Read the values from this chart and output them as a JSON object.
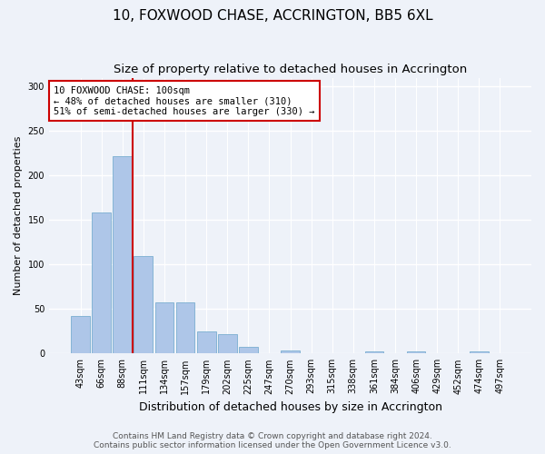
{
  "title": "10, FOXWOOD CHASE, ACCRINGTON, BB5 6XL",
  "subtitle": "Size of property relative to detached houses in Accrington",
  "xlabel": "Distribution of detached houses by size in Accrington",
  "ylabel": "Number of detached properties",
  "categories": [
    "43sqm",
    "66sqm",
    "88sqm",
    "111sqm",
    "134sqm",
    "157sqm",
    "179sqm",
    "202sqm",
    "225sqm",
    "247sqm",
    "270sqm",
    "293sqm",
    "315sqm",
    "338sqm",
    "361sqm",
    "384sqm",
    "406sqm",
    "429sqm",
    "452sqm",
    "474sqm",
    "497sqm"
  ],
  "values": [
    42,
    158,
    222,
    110,
    57,
    57,
    25,
    22,
    7,
    0,
    3,
    0,
    0,
    0,
    2,
    0,
    2,
    0,
    0,
    2,
    0
  ],
  "bar_color": "#aec6e8",
  "bar_edge_color": "#7aaed0",
  "background_color": "#eef2f9",
  "grid_color": "#ffffff",
  "annotation_box_text": "10 FOXWOOD CHASE: 100sqm\n← 48% of detached houses are smaller (310)\n51% of semi-detached houses are larger (330) →",
  "annotation_box_color": "#ffffff",
  "annotation_box_edge_color": "#cc0000",
  "vline_color": "#cc0000",
  "vline_x": 2.5,
  "ylim": [
    0,
    310
  ],
  "yticks": [
    0,
    50,
    100,
    150,
    200,
    250,
    300
  ],
  "footer_line1": "Contains HM Land Registry data © Crown copyright and database right 2024.",
  "footer_line2": "Contains public sector information licensed under the Open Government Licence v3.0.",
  "title_fontsize": 11,
  "subtitle_fontsize": 9.5,
  "xlabel_fontsize": 9,
  "ylabel_fontsize": 8,
  "tick_fontsize": 7,
  "annotation_fontsize": 7.5,
  "footer_fontsize": 6.5
}
